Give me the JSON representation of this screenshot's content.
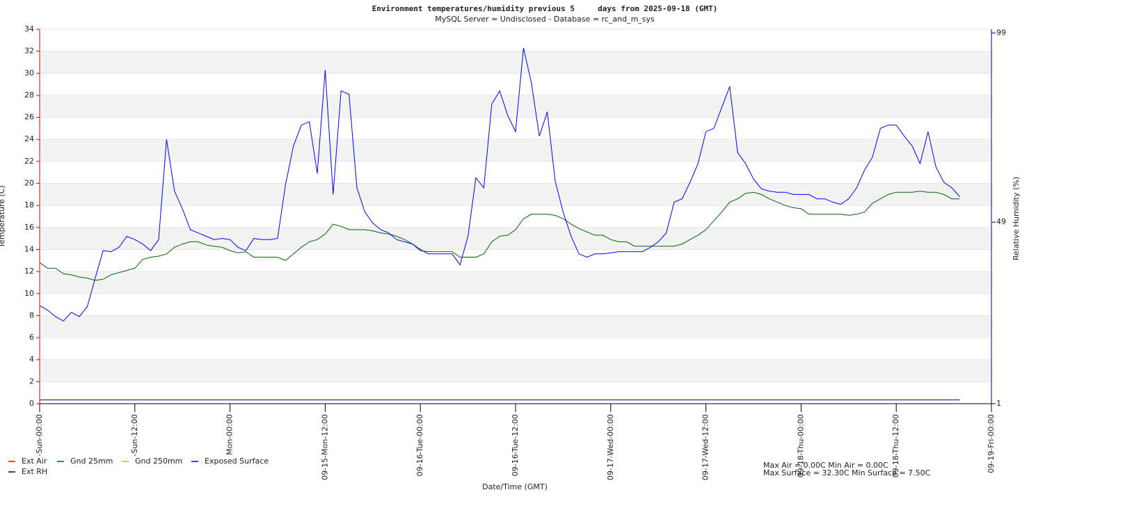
{
  "chart_data": {
    "type": "line",
    "title": "Environment temperatures/humidity previous 5     days from 2025-09-18 (GMT)",
    "subtitle": "MySQL Server = Undisclosed - Database = rc_and_m_sys",
    "xlabel": "Date/Time (GMT)",
    "ylabel": "Temperature (C)",
    "y2label": "Relative Humidity (%)",
    "annotations": [
      "Max Air = 0.00C Min Air = 0.00C",
      "Max Surface = 32.30C Min Surface = 7.50C"
    ],
    "xlim": [
      0,
      120
    ],
    "xticks": [
      {
        "value": 0,
        "label": "-Sun-00:00"
      },
      {
        "value": 12,
        "label": "-Sun-12:00"
      },
      {
        "value": 24,
        "label": "Mon-00:00"
      },
      {
        "value": 36,
        "label": "09-15-Mon-12:00"
      },
      {
        "value": 48,
        "label": "09-16-Tue-00:00"
      },
      {
        "value": 60,
        "label": "09-16-Tue-12:00"
      },
      {
        "value": 72,
        "label": "09-17-Wed-00:00"
      },
      {
        "value": 84,
        "label": "09-17-Wed-12:00"
      },
      {
        "value": 96,
        "label": "09-18-Thu-00:00"
      },
      {
        "value": 108,
        "label": "09-18-Thu-12:00"
      },
      {
        "value": 120,
        "label": "09-19-Fri-00:00"
      }
    ],
    "ylim": [
      0,
      34
    ],
    "yticks": [
      0,
      2,
      4,
      6,
      8,
      10,
      12,
      14,
      16,
      18,
      20,
      22,
      24,
      26,
      28,
      30,
      32,
      34
    ],
    "y2lim": [
      1,
      100
    ],
    "y2ticks": [
      1,
      49,
      99
    ],
    "ycolor": "#e00000",
    "y2color": "#000080",
    "grid": true,
    "x": [
      0,
      1,
      2,
      3,
      4,
      5,
      6,
      7,
      8,
      9,
      10,
      11,
      12,
      13,
      14,
      15,
      16,
      17,
      18,
      19,
      20,
      21,
      22,
      23,
      24,
      25,
      26,
      27,
      28,
      29,
      30,
      31,
      32,
      33,
      34,
      35,
      36,
      37,
      38,
      39,
      40,
      41,
      42,
      43,
      44,
      45,
      46,
      47,
      48,
      49,
      50,
      51,
      52,
      53,
      54,
      55,
      56,
      57,
      58,
      59,
      60,
      61,
      62,
      63,
      64,
      65,
      66,
      67,
      68,
      69,
      70,
      71,
      72,
      73,
      74,
      75,
      76,
      77,
      78,
      79,
      80,
      81,
      82,
      83,
      84,
      85,
      86,
      87,
      88,
      89,
      90,
      91,
      92,
      93,
      94,
      95,
      96,
      97,
      98,
      99,
      100,
      101,
      102,
      103,
      104,
      105,
      106,
      107,
      108,
      109,
      110,
      111,
      112,
      113,
      114,
      115,
      116
    ],
    "series": [
      {
        "name": "Ext Air",
        "color": "#ff0000",
        "x": [
          0,
          116
        ],
        "values": [
          0,
          0
        ]
      },
      {
        "name": "Gnd 25mm",
        "color": "#006400",
        "values": [
          12.8,
          12.3,
          12.3,
          11.8,
          11.7,
          11.5,
          11.4,
          11.2,
          11.3,
          11.7,
          11.9,
          12.1,
          12.3,
          13.1,
          13.3,
          13.4,
          13.6,
          14.2,
          14.5,
          14.7,
          14.7,
          14.4,
          14.3,
          14.2,
          13.9,
          13.7,
          13.8,
          13.3,
          13.3,
          13.3,
          13.3,
          13,
          13.6,
          14.2,
          14.7,
          14.9,
          15.4,
          16.3,
          16.1,
          15.8,
          15.8,
          15.8,
          15.7,
          15.5,
          15.4,
          15.2,
          14.9,
          14.5,
          13.9,
          13.8,
          13.8,
          13.8,
          13.8,
          13.3,
          13.3,
          13.3,
          13.6,
          14.7,
          15.2,
          15.3,
          15.8,
          16.8,
          17.2,
          17.2,
          17.2,
          17.1,
          16.8,
          16.3,
          15.9,
          15.6,
          15.3,
          15.3,
          14.9,
          14.7,
          14.7,
          14.3,
          14.3,
          14.3,
          14.3,
          14.3,
          14.3,
          14.5,
          14.9,
          15.3,
          15.8,
          16.6,
          17.4,
          18.3,
          18.6,
          19.1,
          19.2,
          19,
          18.6,
          18.3,
          18,
          17.8,
          17.7,
          17.2,
          17.2,
          17.2,
          17.2,
          17.2,
          17.1,
          17.2,
          17.4,
          18.2,
          18.6,
          19,
          19.2,
          19.2,
          19.2,
          19.3,
          19.2,
          19.2,
          19,
          18.6,
          18.6
        ]
      },
      {
        "name": "Gnd 250mm",
        "color": "#ffa500",
        "x": [],
        "values": []
      },
      {
        "name": "Exposed Surface",
        "color": "#0000ff",
        "values": [
          8.9,
          8.5,
          7.9,
          7.5,
          8.3,
          7.9,
          8.8,
          11.4,
          13.9,
          13.8,
          14.2,
          15.2,
          14.9,
          14.5,
          13.9,
          14.9,
          24,
          19.3,
          17.7,
          15.8,
          15.5,
          15.2,
          14.9,
          15,
          14.9,
          14.2,
          13.9,
          15,
          14.9,
          14.9,
          15,
          19.9,
          23.4,
          25.3,
          25.6,
          20.9,
          30.3,
          19,
          28.4,
          28.1,
          19.6,
          17.4,
          16.4,
          15.8,
          15.5,
          14.9,
          14.7,
          14.5,
          14,
          13.6,
          13.6,
          13.6,
          13.6,
          12.6,
          15.2,
          20.5,
          19.6,
          27.2,
          28.4,
          26.2,
          24.7,
          32.3,
          29.1,
          24.3,
          26.5,
          20.2,
          17.4,
          15.2,
          13.6,
          13.3,
          13.6,
          13.6,
          13.7,
          13.8,
          13.8,
          13.8,
          13.8,
          14.2,
          14.7,
          15.5,
          18.3,
          18.6,
          20.1,
          21.8,
          24.7,
          25,
          26.9,
          28.8,
          22.8,
          21.8,
          20.4,
          19.5,
          19.3,
          19.2,
          19.2,
          19,
          19,
          19,
          18.6,
          18.6,
          18.3,
          18.1,
          18.6,
          19.6,
          21.2,
          22.4,
          25,
          25.3,
          25.3,
          24.3,
          23.4,
          21.8,
          24.7,
          21.5,
          20.1,
          19.6,
          18.8
        ]
      },
      {
        "name": "Ext RH",
        "color": "#000080",
        "axis": "y2",
        "x": [
          0,
          116
        ],
        "values": [
          2,
          2
        ]
      }
    ]
  }
}
